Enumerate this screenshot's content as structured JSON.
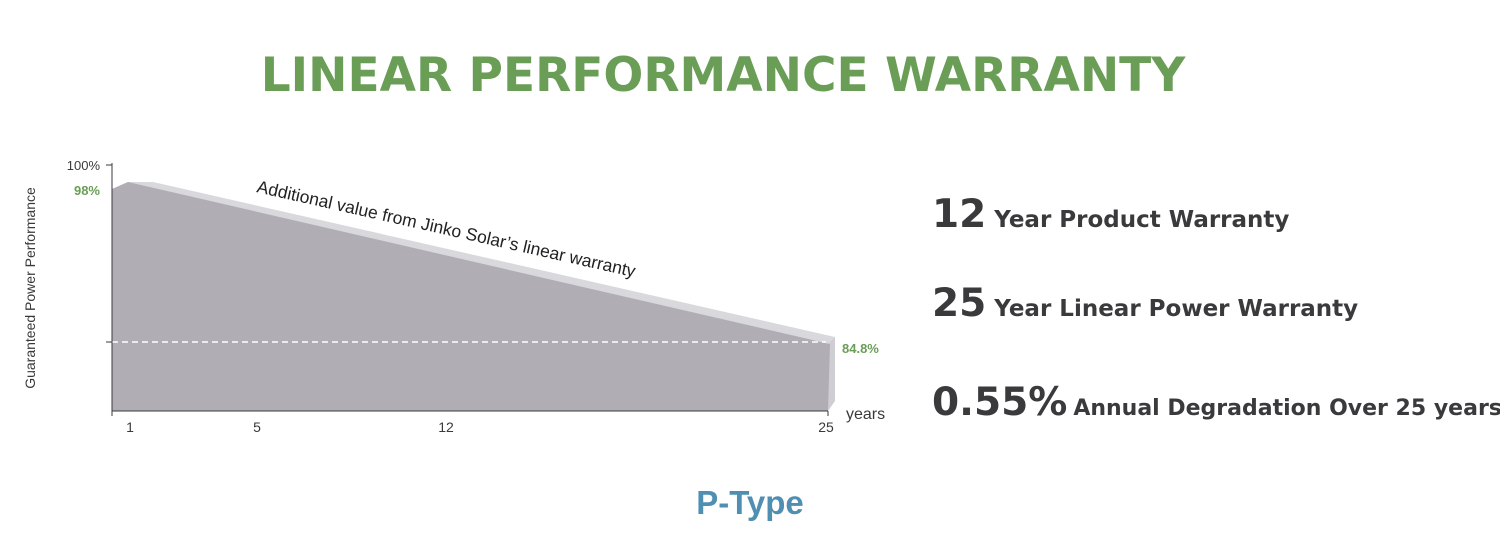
{
  "header": {
    "title": "LINEAR PERFORMANCE WARRANTY"
  },
  "chart_data": {
    "type": "area",
    "title": "",
    "ylabel": "Guaranteed Power Performance",
    "xlabel": "years",
    "y_top_label": "100%",
    "start_label": "98%",
    "end_label": "84.8%",
    "x_ticks": [
      "1",
      "5",
      "12",
      "25"
    ],
    "x": [
      1,
      25
    ],
    "values": [
      98,
      84.8
    ],
    "annotation": "Additional value from Jinko Solar’s linear warranty",
    "colors": {
      "fill": "#b0aeb4",
      "band": "#d9d8dc",
      "accent": "#6a9e57"
    }
  },
  "stats": [
    {
      "num": "12",
      "text": "Year Product Warranty"
    },
    {
      "num": "25",
      "text": "Year Linear Power Warranty"
    },
    {
      "num": "0.55%",
      "text": "Annual Degradation Over 25 years"
    }
  ],
  "footer": {
    "label": "P-Type"
  }
}
